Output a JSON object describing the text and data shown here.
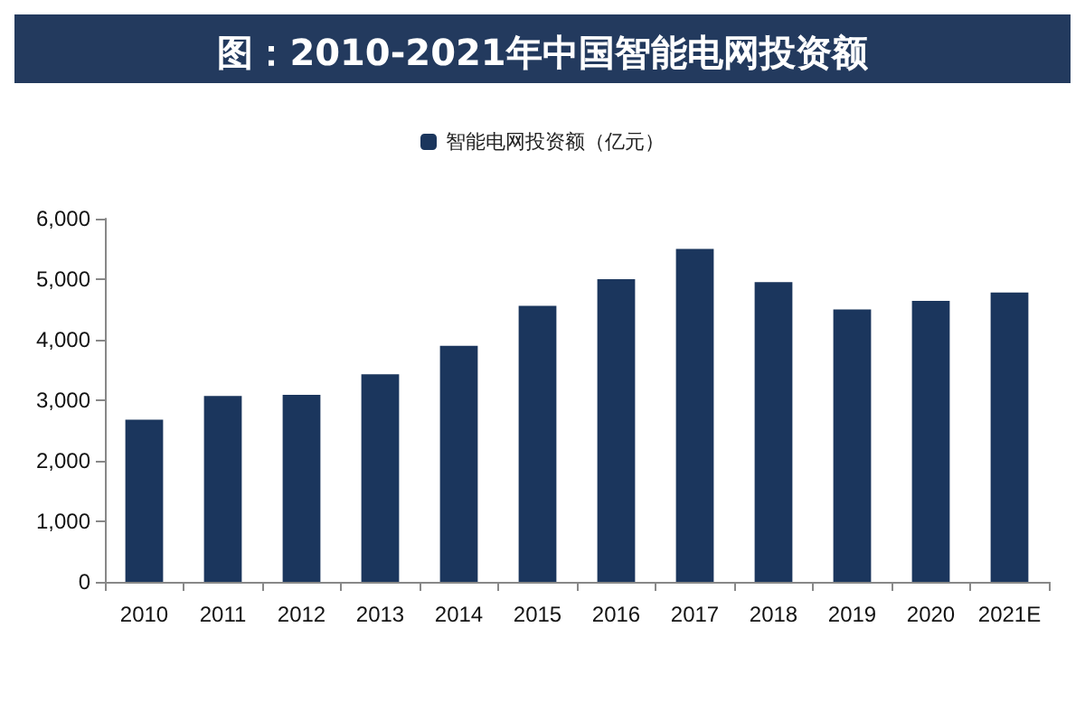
{
  "chart_data": {
    "type": "bar",
    "title": "图：2010-2021年中国智能电网投资额",
    "categories": [
      "2010",
      "2011",
      "2012",
      "2013",
      "2014",
      "2015",
      "2016",
      "2017",
      "2018",
      "2019",
      "2020",
      "2021E"
    ],
    "series": [
      {
        "name": "智能电网投资额（亿元）",
        "color": "#1b365d",
        "values": [
          2680,
          3070,
          3090,
          3430,
          3900,
          4560,
          5000,
          5500,
          4950,
          4500,
          4640,
          4780
        ]
      }
    ],
    "ylim": [
      0,
      6000
    ],
    "yticks": [
      0,
      {
        "value": 1000,
        "label": "1,000"
      },
      {
        "value": 2000,
        "label": "2,000"
      },
      {
        "value": 3000,
        "label": "3,000"
      },
      {
        "value": 4000,
        "label": "4,000"
      },
      {
        "value": 5000,
        "label": "5,000"
      },
      {
        "value": 6000,
        "label": "6,000"
      }
    ],
    "grid": false,
    "legend": "top"
  }
}
